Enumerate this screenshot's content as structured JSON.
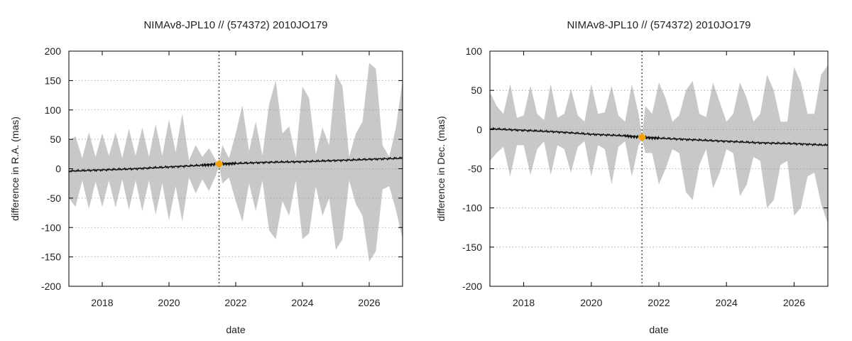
{
  "chart_data": [
    {
      "type": "area",
      "title": "NIMAv8-JPL10 // (574372) 2010JO179",
      "xlabel": "date",
      "ylabel": "difference in R.A. (mas)",
      "xlim": [
        2017.0,
        2027.0
      ],
      "ylim": [
        -200,
        200
      ],
      "xticks": [
        2018,
        2020,
        2022,
        2024,
        2026
      ],
      "yticks": [
        -200,
        -150,
        -100,
        -50,
        0,
        50,
        100,
        150,
        200
      ],
      "grid": "horizontal dotted",
      "reference_epoch": 2021.5,
      "reference_point": {
        "x": 2021.5,
        "y": 8
      },
      "colors": {
        "band": "#c8c8c8",
        "line": "#111111",
        "marker": "#f5a000",
        "epoch_line": "#555555"
      },
      "series": [
        {
          "kind": "uncertainty-band",
          "x": [
            2017.0,
            2017.2,
            2017.4,
            2017.6,
            2017.8,
            2018.0,
            2018.2,
            2018.4,
            2018.6,
            2018.8,
            2019.0,
            2019.2,
            2019.4,
            2019.6,
            2019.8,
            2020.0,
            2020.2,
            2020.4,
            2020.6,
            2020.8,
            2021.0,
            2021.2,
            2021.4,
            2021.5,
            2021.6,
            2021.8,
            2022.0,
            2022.2,
            2022.4,
            2022.6,
            2022.8,
            2023.0,
            2023.2,
            2023.4,
            2023.6,
            2023.8,
            2024.0,
            2024.2,
            2024.4,
            2024.6,
            2024.8,
            2025.0,
            2025.2,
            2025.4,
            2025.6,
            2025.8,
            2026.0,
            2026.2,
            2026.4,
            2026.6,
            2026.8,
            2027.0
          ],
          "upper": [
            48,
            55,
            18,
            62,
            20,
            60,
            22,
            62,
            18,
            68,
            22,
            70,
            20,
            76,
            22,
            84,
            28,
            94,
            14,
            40,
            20,
            35,
            15,
            10,
            40,
            18,
            60,
            108,
            30,
            80,
            22,
            110,
            150,
            60,
            72,
            20,
            140,
            120,
            24,
            70,
            40,
            162,
            140,
            20,
            60,
            80,
            180,
            170,
            40,
            20,
            70,
            150
          ],
          "lower": [
            -50,
            -65,
            -20,
            -68,
            -22,
            -65,
            -20,
            -66,
            -18,
            -70,
            -20,
            -72,
            -20,
            -78,
            -25,
            -88,
            -30,
            -90,
            -15,
            -42,
            -18,
            -38,
            -12,
            5,
            -25,
            -15,
            -55,
            -90,
            -25,
            -72,
            -20,
            -105,
            -120,
            -55,
            -80,
            -20,
            -120,
            -110,
            -30,
            -80,
            -50,
            -138,
            -120,
            -20,
            -60,
            -80,
            -158,
            -140,
            -35,
            -30,
            -70,
            -120
          ]
        },
        {
          "kind": "residual",
          "x": [
            2017.0,
            2018.0,
            2019.0,
            2020.0,
            2021.0,
            2021.5,
            2022.0,
            2023.0,
            2024.0,
            2025.0,
            2026.0,
            2027.0
          ],
          "y": [
            -4,
            -2,
            0,
            3,
            6,
            8,
            9,
            11,
            12,
            14,
            16,
            18
          ]
        }
      ]
    },
    {
      "type": "area",
      "title": "NIMAv8-JPL10 // (574372) 2010JO179",
      "xlabel": "date",
      "ylabel": "difference in Dec. (mas)",
      "xlim": [
        2017.0,
        2027.0
      ],
      "ylim": [
        -200,
        100
      ],
      "xticks": [
        2018,
        2020,
        2022,
        2024,
        2026
      ],
      "yticks": [
        -200,
        -150,
        -100,
        -50,
        0,
        50,
        100
      ],
      "grid": "horizontal dotted",
      "reference_epoch": 2021.5,
      "reference_point": {
        "x": 2021.5,
        "y": -10
      },
      "colors": {
        "band": "#c8c8c8",
        "line": "#111111",
        "marker": "#f5a000",
        "epoch_line": "#555555"
      },
      "series": [
        {
          "kind": "uncertainty-band",
          "x": [
            2017.0,
            2017.2,
            2017.4,
            2017.6,
            2017.8,
            2018.0,
            2018.2,
            2018.4,
            2018.6,
            2018.8,
            2019.0,
            2019.2,
            2019.4,
            2019.6,
            2019.8,
            2020.0,
            2020.2,
            2020.4,
            2020.6,
            2020.8,
            2021.0,
            2021.2,
            2021.4,
            2021.5,
            2021.6,
            2021.8,
            2022.0,
            2022.2,
            2022.4,
            2022.6,
            2022.8,
            2023.0,
            2023.2,
            2023.4,
            2023.6,
            2023.8,
            2024.0,
            2024.2,
            2024.4,
            2024.6,
            2024.8,
            2025.0,
            2025.2,
            2025.4,
            2025.6,
            2025.8,
            2026.0,
            2026.2,
            2026.4,
            2026.6,
            2026.8,
            2027.0
          ],
          "upper": [
            48,
            30,
            20,
            58,
            15,
            18,
            56,
            20,
            12,
            58,
            15,
            20,
            52,
            18,
            10,
            58,
            20,
            22,
            56,
            18,
            10,
            58,
            20,
            -8,
            30,
            20,
            60,
            40,
            10,
            18,
            50,
            62,
            20,
            16,
            60,
            35,
            10,
            20,
            60,
            40,
            10,
            20,
            70,
            50,
            10,
            10,
            80,
            60,
            20,
            20,
            70,
            82
          ],
          "lower": [
            -40,
            -30,
            -22,
            -60,
            -20,
            -20,
            -58,
            -25,
            -15,
            -58,
            -20,
            -25,
            -55,
            -22,
            -15,
            -60,
            -20,
            -25,
            -70,
            -22,
            -15,
            -60,
            -20,
            -12,
            -30,
            -30,
            -70,
            -50,
            -25,
            -30,
            -80,
            -90,
            -45,
            -25,
            -75,
            -55,
            -25,
            -30,
            -85,
            -70,
            -35,
            -40,
            -100,
            -90,
            -45,
            -40,
            -110,
            -100,
            -60,
            -55,
            -95,
            -120
          ]
        },
        {
          "kind": "residual",
          "x": [
            2017.0,
            2018.0,
            2019.0,
            2020.0,
            2021.0,
            2021.5,
            2022.0,
            2023.0,
            2024.0,
            2025.0,
            2026.0,
            2027.0
          ],
          "y": [
            1,
            -1,
            -3,
            -6,
            -8,
            -10,
            -11,
            -13,
            -15,
            -17,
            -18,
            -20
          ]
        }
      ]
    }
  ]
}
